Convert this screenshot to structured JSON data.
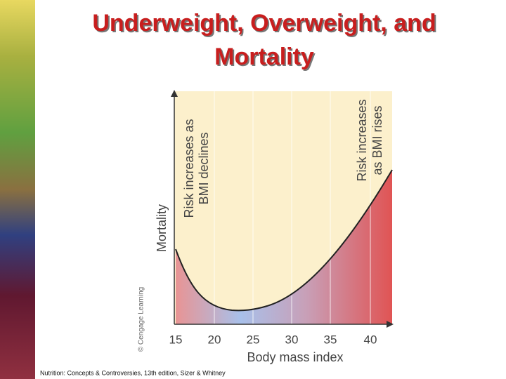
{
  "slide": {
    "title": [
      "Underweight, Overweight, and",
      "Mortality"
    ],
    "figure": {
      "y_axis_label": "Mortality",
      "x_axis_label": "Body mass index",
      "x_tick_labels": [
        "15",
        "20",
        "25",
        "30",
        "35",
        "40"
      ],
      "left_note": [
        "Risk increases as",
        "BMI declines"
      ],
      "right_note": [
        "Risk increases",
        "as BMI rises"
      ],
      "credit": "© Cengage Learning"
    },
    "footer": "Nutrition: Concepts & Controversies, 13th edition, Sizer & Whitney"
  }
}
